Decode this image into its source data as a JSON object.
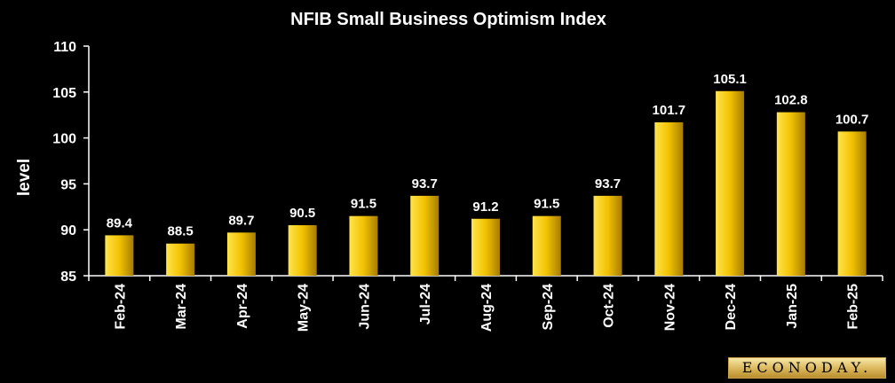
{
  "chart_data": {
    "type": "bar",
    "title": "NFIB Small Business Optimism Index",
    "ylabel": "level",
    "xlabel": "",
    "ylim": [
      85,
      110
    ],
    "yticks": [
      85,
      90,
      95,
      100,
      105,
      110
    ],
    "categories": [
      "Feb-24",
      "Mar-24",
      "Apr-24",
      "May-24",
      "Jun-24",
      "Jul-24",
      "Aug-24",
      "Sep-24",
      "Oct-24",
      "Nov-24",
      "Dec-24",
      "Jan-25",
      "Feb-25"
    ],
    "values": [
      89.4,
      88.5,
      89.7,
      90.5,
      91.5,
      93.7,
      91.2,
      91.5,
      93.7,
      101.7,
      105.1,
      102.8,
      100.7
    ],
    "data_labels": [
      "89.4",
      "88.5",
      "89.7",
      "90.5",
      "91.5",
      "93.7",
      "91.2",
      "91.5",
      "93.7",
      "101.7",
      "105.1",
      "102.8",
      "100.7"
    ],
    "grid": false,
    "colors": {
      "background": "#000000",
      "bar_light": "#ffe44d",
      "bar_mid": "#f2c200",
      "bar_dark": "#a67c00",
      "text": "#ffffff"
    }
  },
  "branding": {
    "logo_text": "ECONODAY."
  }
}
